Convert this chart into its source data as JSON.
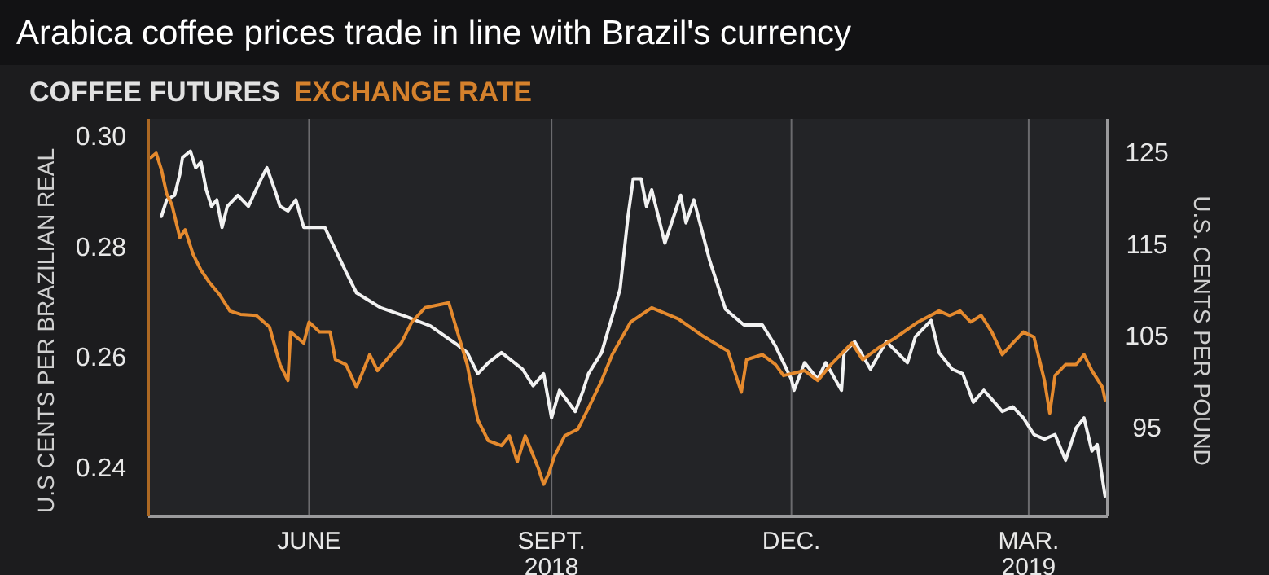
{
  "chart_data": {
    "type": "line",
    "title": "Arabica coffee prices trade in line with Brazil's currency",
    "ylabel": "U.S CENTS PER BRAZILIAN REAL",
    "y2label": "U.S. CENTS PER POUND",
    "xlim": [
      "2018-04-01",
      "2019-03-31"
    ],
    "xticks": [
      {
        "value": "2018-06-01",
        "label": "JUNE"
      },
      {
        "value": "2018-09-01",
        "label": "SEPT.\n2018"
      },
      {
        "value": "2018-12-01",
        "label": "DEC."
      },
      {
        "value": "2019-03-01",
        "label": "MAR.\n2019"
      }
    ],
    "ylim": [
      0.231,
      0.303
    ],
    "yticks": [
      {
        "value": 0.3,
        "label": "0.30"
      },
      {
        "value": 0.28,
        "label": "0.28"
      },
      {
        "value": 0.26,
        "label": "0.26"
      },
      {
        "value": 0.24,
        "label": "0.24"
      }
    ],
    "y2lim": [
      85.3,
      128.5
    ],
    "y2ticks": [
      125,
      115,
      105,
      95
    ],
    "grid": "x",
    "legend": "top left",
    "series": [
      {
        "name": "COFFEE FUTURES",
        "color": "#f2f2f2",
        "axis": "y2",
        "x": [
          "2018-04-06",
          "2018-04-08",
          "2018-04-11",
          "2018-04-13",
          "2018-04-14",
          "2018-04-17",
          "2018-04-19",
          "2018-04-21",
          "2018-04-23",
          "2018-04-25",
          "2018-04-27",
          "2018-04-29",
          "2018-05-01",
          "2018-05-05",
          "2018-05-09",
          "2018-05-13",
          "2018-05-16",
          "2018-05-19",
          "2018-05-21",
          "2018-05-24",
          "2018-05-27",
          "2018-05-30",
          "2018-06-01",
          "2018-06-07",
          "2018-06-15",
          "2018-06-19",
          "2018-06-28",
          "2018-07-08",
          "2018-07-17",
          "2018-07-27",
          "2018-07-31",
          "2018-08-04",
          "2018-08-08",
          "2018-08-13",
          "2018-08-21",
          "2018-08-25",
          "2018-08-29",
          "2018-09-01",
          "2018-09-04",
          "2018-09-10",
          "2018-09-13",
          "2018-09-15",
          "2018-09-20",
          "2018-09-25",
          "2018-09-27",
          "2018-09-30",
          "2018-10-02",
          "2018-10-05",
          "2018-10-07",
          "2018-10-09",
          "2018-10-14",
          "2018-10-20",
          "2018-10-22",
          "2018-10-25",
          "2018-10-31",
          "2018-11-06",
          "2018-11-13",
          "2018-11-20",
          "2018-11-25",
          "2018-12-01",
          "2018-12-02",
          "2018-12-06",
          "2018-12-11",
          "2018-12-14",
          "2018-12-20",
          "2018-12-21",
          "2018-12-25",
          "2018-12-31",
          "2019-01-06",
          "2019-01-14",
          "2019-01-17",
          "2019-01-23",
          "2019-01-26",
          "2019-01-31",
          "2019-02-04",
          "2019-02-08",
          "2019-02-12",
          "2019-02-16",
          "2019-02-19",
          "2019-02-23",
          "2019-02-27",
          "2019-03-03",
          "2019-03-07",
          "2019-03-11",
          "2019-03-15",
          "2019-03-19",
          "2019-03-22",
          "2019-03-25",
          "2019-03-27",
          "2019-03-30"
        ],
        "values": [
          117.9,
          119.7,
          120.2,
          122.5,
          124.3,
          125,
          123.2,
          123.8,
          120.8,
          119,
          119.7,
          116.7,
          119,
          120.2,
          119,
          121.5,
          123.2,
          120.8,
          119,
          118.5,
          119.7,
          116.7,
          116.7,
          116.7,
          111.9,
          109.6,
          108,
          107,
          106,
          104,
          103.1,
          100.8,
          102,
          103.1,
          101.3,
          99.5,
          100.8,
          96,
          99,
          96.7,
          99,
          100.8,
          103.1,
          108,
          110,
          117.9,
          122,
          122,
          119,
          120.8,
          115,
          120.2,
          117.2,
          119.7,
          113.1,
          107.8,
          106.1,
          106.1,
          103.8,
          100.2,
          99,
          102,
          100.2,
          102,
          99,
          103.1,
          104.3,
          101.3,
          104.3,
          102,
          104.8,
          106.6,
          103.1,
          101.3,
          100.8,
          97.7,
          99,
          97.7,
          96.7,
          97.2,
          96,
          94.2,
          93.7,
          94.2,
          91.4,
          94.9,
          96,
          92.4,
          93.1,
          87.5
        ]
      },
      {
        "name": "EXCHANGE RATE",
        "color": "#e58a2e",
        "x": [
          "2018-04-02",
          "2018-04-04",
          "2018-04-06",
          "2018-04-08",
          "2018-04-10",
          "2018-04-13",
          "2018-04-15",
          "2018-04-18",
          "2018-04-21",
          "2018-04-24",
          "2018-04-28",
          "2018-05-02",
          "2018-05-06",
          "2018-05-12",
          "2018-05-17",
          "2018-05-21",
          "2018-05-24",
          "2018-05-25",
          "2018-05-30",
          "2018-06-01",
          "2018-06-05",
          "2018-06-09",
          "2018-06-11",
          "2018-06-15",
          "2018-06-19",
          "2018-06-24",
          "2018-06-27",
          "2018-07-02",
          "2018-07-06",
          "2018-07-10",
          "2018-07-15",
          "2018-07-24",
          "2018-07-31",
          "2018-08-04",
          "2018-08-08",
          "2018-08-13",
          "2018-08-16",
          "2018-08-19",
          "2018-08-22",
          "2018-08-27",
          "2018-08-29",
          "2018-08-31",
          "2018-09-02",
          "2018-09-06",
          "2018-09-11",
          "2018-09-15",
          "2018-09-20",
          "2018-09-24",
          "2018-10-01",
          "2018-10-09",
          "2018-10-19",
          "2018-10-28",
          "2018-11-07",
          "2018-11-12",
          "2018-11-14",
          "2018-11-20",
          "2018-11-25",
          "2018-11-28",
          "2018-12-06",
          "2018-12-11",
          "2018-12-16",
          "2018-12-24",
          "2018-12-28",
          "2019-01-03",
          "2019-01-09",
          "2019-01-18",
          "2019-01-26",
          "2019-01-30",
          "2019-02-03",
          "2019-02-07",
          "2019-02-11",
          "2019-02-15",
          "2019-02-19",
          "2019-02-23",
          "2019-02-27",
          "2019-03-03",
          "2019-03-07",
          "2019-03-09",
          "2019-03-11",
          "2019-03-15",
          "2019-03-19",
          "2019-03-22",
          "2019-03-25",
          "2019-03-29",
          "2019-03-30"
        ],
        "values": [
          0.296,
          0.2968,
          0.2938,
          0.2894,
          0.2874,
          0.2815,
          0.2829,
          0.2785,
          0.2756,
          0.2735,
          0.2712,
          0.2682,
          0.2676,
          0.2674,
          0.2653,
          0.2585,
          0.2556,
          0.2644,
          0.2624,
          0.2662,
          0.2644,
          0.2644,
          0.2594,
          0.2585,
          0.2544,
          0.2603,
          0.2574,
          0.2603,
          0.2624,
          0.2662,
          0.2688,
          0.2697,
          0.2585,
          0.2485,
          0.2447,
          0.2438,
          0.2456,
          0.2409,
          0.2456,
          0.2397,
          0.2368,
          0.2388,
          0.2418,
          0.2456,
          0.2468,
          0.2506,
          0.2556,
          0.2603,
          0.2662,
          0.2688,
          0.2668,
          0.2638,
          0.2609,
          0.2535,
          0.2594,
          0.2603,
          0.2585,
          0.2565,
          0.2574,
          0.2556,
          0.2585,
          0.2624,
          0.2594,
          0.2615,
          0.2632,
          0.2662,
          0.2682,
          0.2674,
          0.2682,
          0.2662,
          0.2674,
          0.2644,
          0.2603,
          0.2624,
          0.2644,
          0.2635,
          0.2556,
          0.2497,
          0.2565,
          0.2585,
          0.2585,
          0.2603,
          0.2574,
          0.2544,
          0.2521
        ]
      }
    ]
  }
}
